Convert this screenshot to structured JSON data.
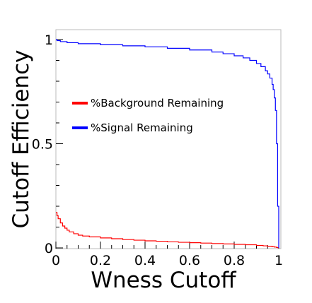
{
  "chart_data": {
    "type": "line",
    "title": "",
    "xlabel": "Wness Cutoff",
    "ylabel": "Cutoff Efficiency",
    "xlim": [
      0,
      1
    ],
    "ylim": [
      0,
      1.05
    ],
    "grid": false,
    "legend_position": "center-left",
    "x_ticks": [
      0,
      0.2,
      0.4,
      0.6,
      0.8,
      1
    ],
    "x_tick_labels": [
      "0",
      "0.2",
      "0.4",
      "0.6",
      "0.8",
      "1"
    ],
    "y_ticks": [
      0,
      0.5,
      1
    ],
    "y_tick_labels": [
      "0",
      "0.5",
      "1"
    ],
    "series": [
      {
        "name": "%Background Remaining",
        "color": "#ff0000",
        "x": [
          0,
          0.005,
          0.01,
          0.02,
          0.03,
          0.04,
          0.05,
          0.06,
          0.08,
          0.1,
          0.12,
          0.15,
          0.2,
          0.25,
          0.3,
          0.35,
          0.4,
          0.45,
          0.5,
          0.55,
          0.6,
          0.65,
          0.7,
          0.75,
          0.8,
          0.85,
          0.9,
          0.93,
          0.95,
          0.97,
          0.98,
          0.99,
          0.995,
          1.0
        ],
        "y": [
          0.17,
          0.155,
          0.14,
          0.12,
          0.105,
          0.095,
          0.085,
          0.077,
          0.068,
          0.061,
          0.057,
          0.053,
          0.048,
          0.044,
          0.04,
          0.037,
          0.034,
          0.032,
          0.029,
          0.027,
          0.025,
          0.023,
          0.021,
          0.019,
          0.017,
          0.015,
          0.012,
          0.01,
          0.008,
          0.006,
          0.004,
          0.002,
          0.001,
          0.0
        ]
      },
      {
        "name": "%Signal Remaining",
        "color": "#0000ff",
        "x": [
          0,
          0.005,
          0.02,
          0.05,
          0.1,
          0.2,
          0.3,
          0.4,
          0.5,
          0.6,
          0.7,
          0.75,
          0.8,
          0.84,
          0.87,
          0.9,
          0.92,
          0.94,
          0.95,
          0.96,
          0.97,
          0.975,
          0.98,
          0.985,
          0.99,
          0.995,
          1.0
        ],
        "y": [
          1.0,
          0.995,
          0.99,
          0.985,
          0.98,
          0.975,
          0.97,
          0.965,
          0.958,
          0.95,
          0.94,
          0.932,
          0.922,
          0.912,
          0.9,
          0.885,
          0.87,
          0.85,
          0.835,
          0.815,
          0.785,
          0.76,
          0.72,
          0.66,
          0.5,
          0.2,
          0.0
        ]
      }
    ]
  }
}
